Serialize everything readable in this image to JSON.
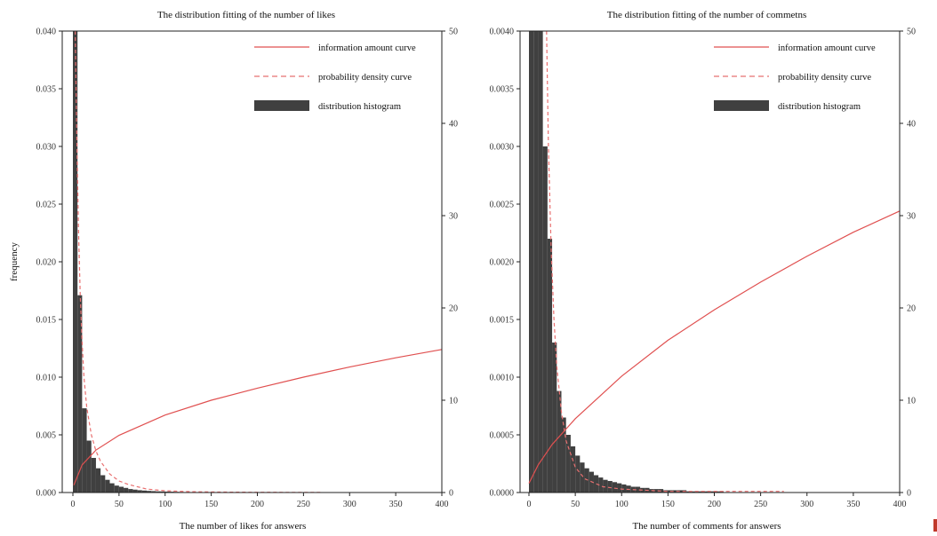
{
  "chart_data": [
    {
      "type": "bar",
      "title": "The distribution fitting of the number of likes",
      "xlabel": "The number of likes for answers",
      "ylabel": "frequency",
      "y2label": "",
      "xlim": [
        0,
        400
      ],
      "ylim": [
        0,
        0.04
      ],
      "y2lim": [
        0,
        50
      ],
      "xticks": [
        "0",
        "50",
        "100",
        "150",
        "200",
        "250",
        "300",
        "350",
        "400"
      ],
      "yticks": [
        "0.000",
        "0.005",
        "0.010",
        "0.015",
        "0.020",
        "0.025",
        "0.030",
        "0.035",
        "0.040"
      ],
      "y2ticks": [
        "0",
        "10",
        "20",
        "30",
        "40",
        "50"
      ],
      "legend": {
        "position": "top-right",
        "items": [
          {
            "label": "information amount curve",
            "style": "solid"
          },
          {
            "label": "probability density curve",
            "style": "dashed"
          },
          {
            "label": "distribution histogram",
            "style": "bar"
          }
        ]
      },
      "histogram": {
        "bin_width": 5,
        "bin_start": 0,
        "values": [
          0.04,
          0.0171,
          0.0073,
          0.0045,
          0.003,
          0.0021,
          0.0015,
          0.0011,
          0.0008,
          0.0006,
          0.0005,
          0.0004,
          0.0003,
          0.00025,
          0.0002,
          0.00017,
          0.00014,
          0.00012,
          0.0001,
          9e-05,
          8e-05,
          7e-05,
          6e-05,
          5e-05,
          4e-05,
          4e-05,
          3e-05,
          3e-05,
          2e-05,
          2e-05,
          2e-05,
          2e-05,
          1e-05,
          1e-05,
          1e-05,
          1e-05,
          1e-05,
          1e-05
        ]
      },
      "series": [
        {
          "axis": "right",
          "style": "solid",
          "x": [
            1,
            10,
            25,
            50,
            100,
            150,
            200,
            250,
            300,
            350,
            400
          ],
          "y": [
            0.8,
            3.0,
            4.6,
            6.2,
            8.4,
            10.0,
            11.3,
            12.5,
            13.6,
            14.6,
            15.5
          ]
        },
        {
          "axis": "left",
          "style": "dashed",
          "x": [
            2.5,
            4,
            6,
            8,
            10,
            12,
            15,
            20,
            25,
            30,
            40,
            50,
            60,
            80,
            100,
            130,
            160,
            200,
            270
          ],
          "y": [
            0.04,
            0.032,
            0.023,
            0.017,
            0.013,
            0.01,
            0.0074,
            0.005,
            0.0036,
            0.0027,
            0.0016,
            0.001,
            0.0007,
            0.0003,
            0.00015,
            7e-05,
            4e-05,
            2e-05,
            1e-05
          ]
        }
      ]
    },
    {
      "type": "bar",
      "title": "The distribution fitting of the number of commetns",
      "xlabel": "The number of comments for answers",
      "ylabel": "",
      "y2label": "",
      "xlim": [
        0,
        400
      ],
      "ylim": [
        0,
        0.004
      ],
      "y2lim": [
        0,
        50
      ],
      "xticks": [
        "0",
        "50",
        "100",
        "150",
        "200",
        "250",
        "300",
        "350",
        "400"
      ],
      "yticks": [
        "0.0000",
        "0.0005",
        "0.0010",
        "0.0015",
        "0.0020",
        "0.0025",
        "0.0030",
        "0.0035",
        "0.0040"
      ],
      "y2ticks": [
        "0",
        "10",
        "20",
        "30",
        "40",
        "50"
      ],
      "legend": {
        "position": "top-right",
        "items": [
          {
            "label": "information amount curve",
            "style": "solid"
          },
          {
            "label": "probability density curve",
            "style": "dashed"
          },
          {
            "label": "distribution histogram",
            "style": "bar"
          }
        ]
      },
      "histogram": {
        "bin_width": 5,
        "bin_start": 0,
        "values": [
          0.004,
          0.004,
          0.004,
          0.003,
          0.0022,
          0.0013,
          0.00088,
          0.00065,
          0.0005,
          0.0004,
          0.00032,
          0.00026,
          0.00021,
          0.00018,
          0.00015,
          0.00013,
          0.00011,
          0.0001,
          9e-05,
          8e-05,
          7e-05,
          6e-05,
          5e-05,
          5e-05,
          4e-05,
          4e-05,
          3e-05,
          3e-05,
          3e-05,
          2e-05,
          2e-05,
          2e-05,
          2e-05,
          2e-05,
          1e-05,
          1e-05,
          1e-05,
          1e-05,
          1e-05,
          1e-05,
          1e-05,
          1e-05
        ]
      },
      "series": [
        {
          "axis": "right",
          "style": "solid",
          "x": [
            0,
            10,
            25,
            50,
            100,
            150,
            200,
            250,
            300,
            350,
            400
          ],
          "y": [
            1.0,
            3.0,
            5.2,
            8.0,
            12.6,
            16.5,
            19.8,
            22.8,
            25.6,
            28.2,
            30.5
          ]
        },
        {
          "axis": "left",
          "style": "dashed",
          "x": [
            19,
            21,
            24,
            27,
            30,
            35,
            40,
            50,
            60,
            80,
            100,
            150,
            200,
            275
          ],
          "y": [
            0.004,
            0.003,
            0.0021,
            0.0015,
            0.0011,
            0.0007,
            0.00045,
            0.00022,
            0.00012,
            5e-05,
            3e-05,
            1e-05,
            1e-05,
            1e-05
          ]
        }
      ]
    }
  ],
  "colors": {
    "histogram": "#404040",
    "information_curve": "#e05050",
    "density_curve": "#e87070",
    "axis": "#222222"
  }
}
